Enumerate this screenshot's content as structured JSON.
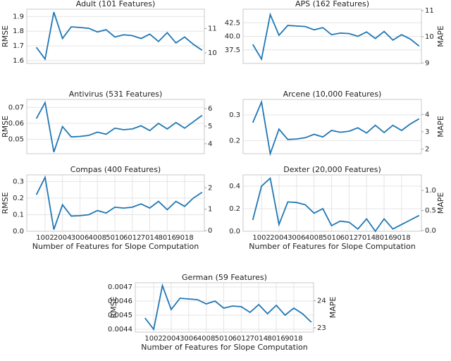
{
  "chart_data": [
    {
      "type": "line",
      "title": "Adult (101 Features)",
      "ylabel": "RMSE",
      "color": "#1f77b4",
      "x": [
        501,
        1002,
        1503,
        2004,
        2505,
        3006,
        3507,
        4008,
        4509,
        5010,
        5511,
        6012,
        6513,
        7014,
        7515,
        8016,
        8517,
        9018,
        9519,
        10020
      ],
      "values": [
        1.69,
        1.61,
        1.93,
        1.75,
        1.83,
        1.825,
        1.82,
        1.795,
        1.81,
        1.76,
        1.775,
        1.77,
        1.75,
        1.78,
        1.73,
        1.79,
        1.72,
        1.76,
        1.71,
        1.67
      ],
      "xlim": [
        -50,
        10150
      ],
      "ylim": [
        1.58,
        1.95
      ],
      "yticks": [
        1.6,
        1.7,
        1.8,
        1.9
      ],
      "y2lim": [
        9.56,
        11.8
      ],
      "y2ticks": [
        10,
        11
      ],
      "grid": true
    },
    {
      "type": "line",
      "title": "APS (162 Features)",
      "y2label": "MAPE",
      "color": "#1f77b4",
      "x": [
        501,
        1002,
        1503,
        2004,
        2505,
        3006,
        3507,
        4008,
        4509,
        5010,
        5511,
        6012,
        6513,
        7014,
        7515,
        8016,
        8517,
        9018,
        9519,
        10020
      ],
      "values": [
        38.5,
        35.8,
        44,
        40.2,
        42,
        41.9,
        41.8,
        41.2,
        41.6,
        40.3,
        40.6,
        40.5,
        40,
        40.8,
        39.6,
        40.9,
        39.3,
        40.3,
        39.5,
        38.2
      ],
      "xlim": [
        -50,
        10150
      ],
      "ylim": [
        35,
        45
      ],
      "yticks": [
        37.5,
        {
          "value": 40,
          "label": "40.0"
        },
        42.5
      ],
      "y2lim": [
        8.98,
        11.06
      ],
      "y2ticks": [
        9,
        10,
        11
      ],
      "grid": true
    },
    {
      "type": "line",
      "title": "Antivirus (531 Features)",
      "ylabel": "RMSE",
      "color": "#1f77b4",
      "x": [
        501,
        1002,
        1503,
        2004,
        2505,
        3006,
        3507,
        4008,
        4509,
        5010,
        5511,
        6012,
        6513,
        7014,
        7515,
        8016,
        8517,
        9018,
        9519,
        10020
      ],
      "values": [
        0.063,
        0.073,
        0.042,
        0.058,
        0.0515,
        0.0518,
        0.0525,
        0.0545,
        0.0532,
        0.057,
        0.056,
        0.0565,
        0.0585,
        0.0555,
        0.06,
        0.0565,
        0.0605,
        0.057,
        0.061,
        0.065
      ],
      "xlim": [
        -50,
        10150
      ],
      "ylim": [
        0.041,
        0.075
      ],
      "yticks": [
        0.05,
        0.06,
        0.07
      ],
      "y2lim": [
        3.43,
        6.53
      ],
      "y2ticks": [
        4,
        5,
        6
      ],
      "grid": true
    },
    {
      "type": "line",
      "title": "Arcene (10,000 Features)",
      "y2label": "MAPE",
      "color": "#1f77b4",
      "x": [
        501,
        1002,
        1503,
        2004,
        2505,
        3006,
        3507,
        4008,
        4509,
        5010,
        5511,
        6012,
        6513,
        7014,
        7515,
        8016,
        8517,
        9018,
        9519,
        10020
      ],
      "values": [
        0.27,
        0.35,
        0.15,
        0.245,
        0.205,
        0.207,
        0.212,
        0.225,
        0.215,
        0.24,
        0.233,
        0.237,
        0.25,
        0.23,
        0.26,
        0.232,
        0.26,
        0.24,
        0.265,
        0.285
      ],
      "xlim": [
        -50,
        10150
      ],
      "ylim": [
        0.15,
        0.36
      ],
      "yticks": [
        0.2,
        0.3
      ],
      "y2lim": [
        1.73,
        4.87
      ],
      "y2ticks": [
        2,
        3,
        4
      ],
      "grid": true
    },
    {
      "type": "line",
      "title": "Compas (400 Features)",
      "ylabel": "RMSE",
      "xlabel": "Number of Features for Slope Computation",
      "color": "#1f77b4",
      "x": [
        501,
        1002,
        1503,
        2004,
        2505,
        3006,
        3507,
        4008,
        4509,
        5010,
        5511,
        6012,
        6513,
        7014,
        7515,
        8016,
        8517,
        9018,
        9519,
        10020
      ],
      "values": [
        0.22,
        0.325,
        0.01,
        0.16,
        0.092,
        0.094,
        0.1,
        0.125,
        0.11,
        0.145,
        0.14,
        0.145,
        0.165,
        0.14,
        0.18,
        0.13,
        0.18,
        0.15,
        0.2,
        0.235
      ],
      "xlim": [
        -50,
        10150
      ],
      "xticks": [
        1002,
        2004,
        3006,
        4008,
        5010,
        6012,
        7014,
        8016,
        9018
      ],
      "ylim": [
        0,
        0.34
      ],
      "yticks": [
        {
          "value": 0,
          "label": "0.0"
        },
        0.1,
        0.2,
        0.3
      ],
      "y2lim": [
        -0.03,
        2.6
      ],
      "y2ticks": [
        0,
        1,
        2
      ],
      "grid": true
    },
    {
      "type": "line",
      "title": "Dexter (20,000 Features)",
      "y2label": "MAPE",
      "xlabel": "Number of Features for Slope Computation",
      "color": "#1f77b4",
      "x": [
        501,
        1002,
        1503,
        2004,
        2505,
        3006,
        3507,
        4008,
        4509,
        5010,
        5511,
        6012,
        6513,
        7014,
        7515,
        8016,
        8517,
        9018,
        9519,
        10020
      ],
      "values": [
        0.1,
        0.4,
        0.47,
        0.06,
        0.26,
        0.255,
        0.235,
        0.16,
        0.2,
        0.05,
        0.09,
        0.08,
        0.02,
        0.11,
        0.0,
        0.11,
        0.02,
        0.06,
        0.1,
        0.14
      ],
      "xlim": [
        -50,
        10150
      ],
      "xticks": [
        1002,
        2004,
        3006,
        4008,
        5010,
        6012,
        7014,
        8016,
        9018
      ],
      "ylim": [
        0,
        0.5
      ],
      "yticks": [
        {
          "value": 0,
          "label": "0.0"
        },
        0.2,
        0.4
      ],
      "y2lim": [
        -0.017,
        1.39
      ],
      "y2ticks": [
        {
          "value": 0,
          "label": "0.0"
        },
        0.5,
        {
          "value": 1,
          "label": "1.0"
        }
      ],
      "grid": true
    },
    {
      "type": "line",
      "title": "German (59 Features)",
      "ylabel": "RMSE",
      "y2label": "MAPE",
      "xlabel": "Number of Features for Slope Computation",
      "color": "#1f77b4",
      "x": [
        501,
        1002,
        1503,
        2004,
        2505,
        3006,
        3507,
        4008,
        4509,
        5010,
        5511,
        6012,
        6513,
        7014,
        7515,
        8016,
        8517,
        9018,
        9519,
        10020
      ],
      "values": [
        0.00448,
        0.0044,
        0.00471,
        0.00454,
        0.00462,
        0.004615,
        0.00461,
        0.00458,
        0.0046,
        0.00455,
        0.004565,
        0.00456,
        0.00452,
        0.004575,
        0.00451,
        0.00457,
        0.0045,
        0.00455,
        0.00451,
        0.00445
      ],
      "xlim": [
        -50,
        10150
      ],
      "xticks": [
        1002,
        2004,
        3006,
        4008,
        5010,
        6012,
        7014,
        8016,
        9018
      ],
      "ylim": [
        0.00438,
        0.00473
      ],
      "yticks": [
        0.0044,
        0.0045,
        0.0046,
        0.0047
      ],
      "y2lim": [
        22.84,
        24.67
      ],
      "y2ticks": [
        23,
        24
      ],
      "grid": true
    }
  ]
}
